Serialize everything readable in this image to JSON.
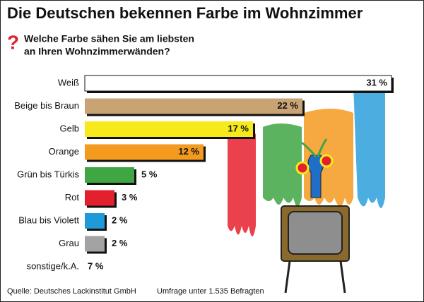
{
  "chart_data": {
    "type": "bar",
    "title": "Die Deutschen bekennen Farbe im Wohnzimmer",
    "question_mark": "?",
    "subtitle": [
      "Welche Farbe sähen Sie am liebsten",
      "an Ihren Wohnzimmerwänden?"
    ],
    "categories": [
      "Weiß",
      "Beige bis Braun",
      "Gelb",
      "Orange",
      "Grün bis Türkis",
      "Rot",
      "Blau bis Violett",
      "Grau",
      "sonstige/k.A."
    ],
    "values": [
      31,
      22,
      17,
      12,
      5,
      3,
      2,
      2,
      7
    ],
    "value_labels": [
      "31 %",
      "22 %",
      "17 %",
      "12 %",
      "5 %",
      "3 %",
      "2 %",
      "2 %",
      "7 %"
    ],
    "colors": [
      "#ffffff",
      "#c9a374",
      "#f6ea1c",
      "#f39a1f",
      "#3fa643",
      "#e3202d",
      "#1f9ad8",
      "#a3a3a3",
      null
    ],
    "source": "Quelle: Deutsches Lackinstitut GmbH",
    "note": "Umfrage unter 1.535 Befragten"
  }
}
